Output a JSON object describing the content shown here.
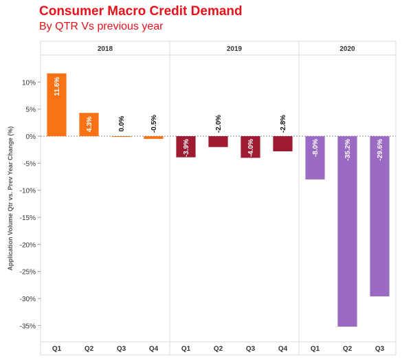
{
  "header": {
    "title": "Consumer Macro Credit Demand",
    "subtitle": "By QTR  Vs previous year"
  },
  "chart_data": {
    "type": "bar",
    "title": "Consumer Macro Credit Demand",
    "subtitle": "By QTR  Vs previous year",
    "ylabel": "Application Volume Qtr vs. Prev Year Change (%)",
    "xlabel": "",
    "ylim": [
      -38,
      15
    ],
    "yticks": [
      10,
      5,
      0,
      -5,
      -10,
      -15,
      -20,
      -25,
      -30,
      -35
    ],
    "ytick_labels": [
      "10%",
      "5%",
      "0%",
      "-5%",
      "-10%",
      "-15%",
      "-20%",
      "-25%",
      "-30%",
      "-35%"
    ],
    "grid": false,
    "legend": "none",
    "groups": [
      {
        "name": "2018",
        "color": "#f97316",
        "categories": [
          "Q1",
          "Q2",
          "Q3",
          "Q4"
        ],
        "values": [
          11.6,
          4.3,
          0.0,
          -0.5
        ],
        "labels": [
          "11.6%",
          "4.3%",
          "0.0%",
          "-0.5%"
        ]
      },
      {
        "name": "2019",
        "color": "#9e1b32",
        "categories": [
          "Q1",
          "Q2",
          "Q3",
          "Q4"
        ],
        "values": [
          -3.9,
          -2.0,
          -4.0,
          -2.8
        ],
        "labels": [
          "-3.9%",
          "-2.0%",
          "-4.0%",
          "-2.8%"
        ]
      },
      {
        "name": "2020",
        "color": "#9b6bc4",
        "categories": [
          "Q1",
          "Q2",
          "Q3"
        ],
        "values": [
          -8.0,
          -35.2,
          -29.6
        ],
        "labels": [
          "-8.0%",
          "-35.2%",
          "-29.6%"
        ]
      }
    ]
  }
}
